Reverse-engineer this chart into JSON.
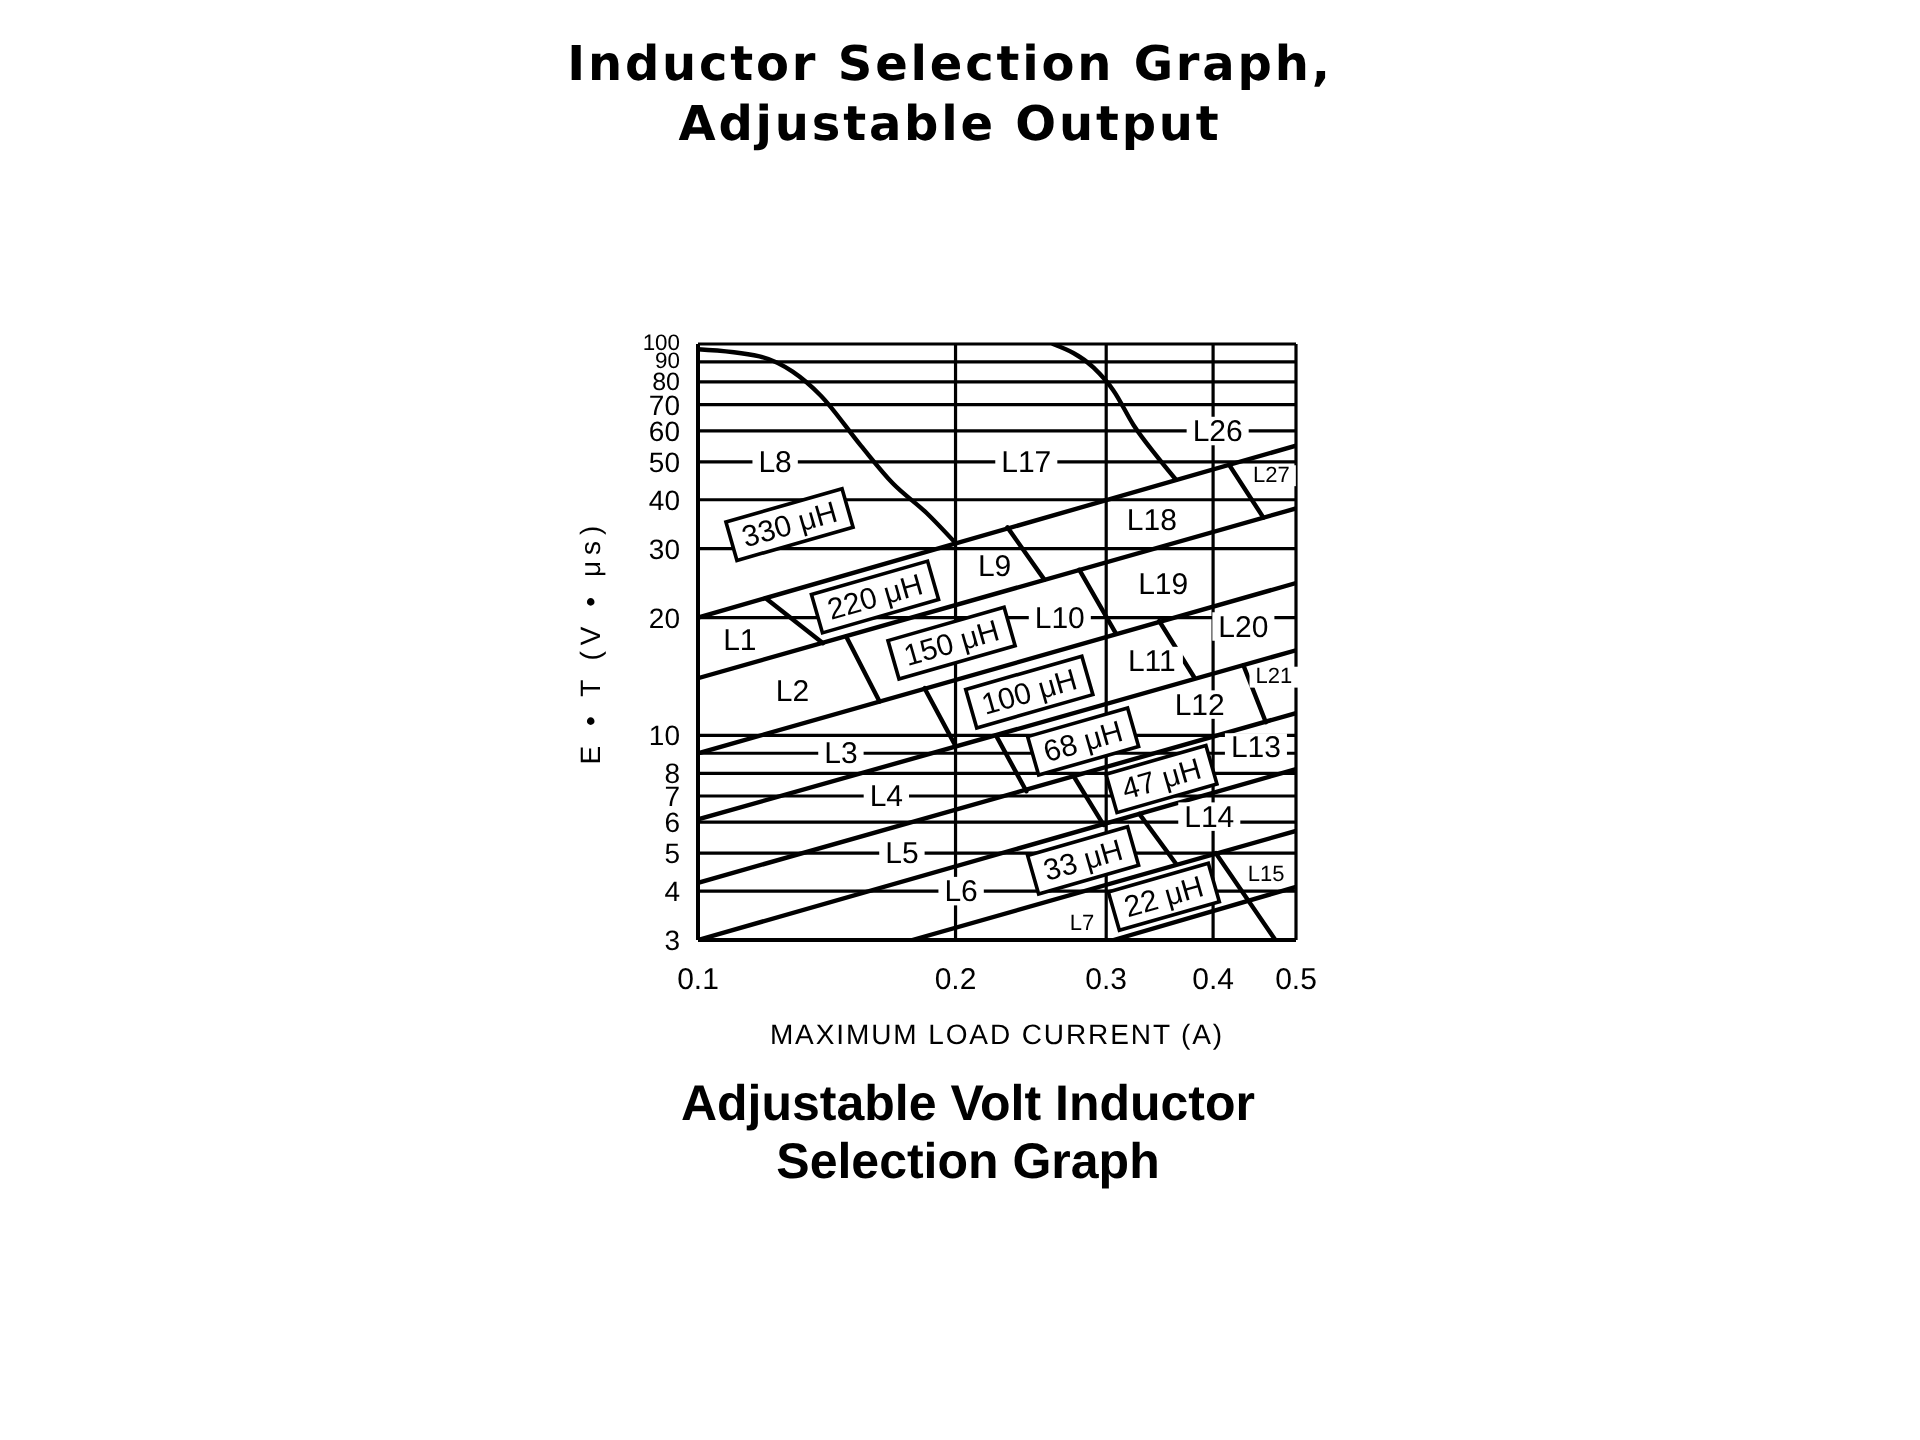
{
  "chart_data": {
    "type": "line",
    "title": "Inductor Selection Graph, Adjustable Output",
    "xlabel": "MAXIMUM LOAD CURRENT (A)",
    "ylabel": "E • T (V • μs)",
    "log": "xy",
    "grid": true,
    "marker": "none",
    "line_style": "solid",
    "xlim": [
      0.1,
      0.5
    ],
    "xticks": [
      0.1,
      0.2,
      0.3,
      0.4,
      0.5
    ],
    "ylim": [
      3,
      100
    ],
    "yticks": [
      3,
      4,
      5,
      6,
      7,
      8,
      {
        "value": 9,
        "label": null
      },
      10,
      20,
      30,
      40,
      50,
      60,
      70,
      80,
      90,
      100
    ],
    "series": [
      {
        "color": "#000000",
        "x": [
          0.1,
          0.5
        ],
        "values": [
          20,
          55
        ]
      },
      {
        "color": "#000000",
        "x": [
          0.1,
          0.5
        ],
        "values": [
          14,
          38
        ]
      },
      {
        "color": "#000000",
        "x": [
          0.1,
          0.5
        ],
        "values": [
          9,
          24.5
        ]
      },
      {
        "color": "#000000",
        "x": [
          0.1,
          0.5
        ],
        "values": [
          6.1,
          16.5
        ]
      },
      {
        "color": "#000000",
        "x": [
          0.1,
          0.5
        ],
        "values": [
          4.2,
          11.4
        ]
      },
      {
        "color": "#000000",
        "x": [
          0.1,
          0.5
        ],
        "values": [
          3,
          8.2
        ]
      },
      {
        "color": "#000000",
        "x": [
          0.178,
          0.5
        ],
        "values": [
          3,
          5.7
        ]
      },
      {
        "color": "#000000",
        "x": [
          0.306,
          0.5
        ],
        "values": [
          3,
          4.1
        ]
      },
      {
        "color": "#000000",
        "x": [
          0.1,
          0.118,
          0.129,
          0.139,
          0.155,
          0.169,
          0.185,
          0.2
        ],
        "values": [
          97,
          93,
          85,
          74,
          55,
          44,
          37,
          31
        ]
      },
      {
        "color": "#000000",
        "x": [
          0.26,
          0.29,
          0.306,
          0.323,
          0.343,
          0.362
        ],
        "values": [
          100,
          87,
          76,
          62,
          52,
          45
        ]
      },
      {
        "color": "#000000",
        "x": [
          0.12,
          0.14
        ],
        "values": [
          22.4,
          17.2
        ]
      },
      {
        "color": "#000000",
        "x": [
          0.23,
          0.254
        ],
        "values": [
          34,
          25
        ]
      },
      {
        "color": "#000000",
        "x": [
          0.418,
          0.458
        ],
        "values": [
          49,
          36
        ]
      },
      {
        "color": "#000000",
        "x": [
          0.149,
          0.163
        ],
        "values": [
          17.9,
          12.2
        ]
      },
      {
        "color": "#000000",
        "x": [
          0.279,
          0.308
        ],
        "values": [
          26.5,
          18.2
        ]
      },
      {
        "color": "#000000",
        "x": [
          0.184,
          0.2
        ],
        "values": [
          13.2,
          9.4
        ]
      },
      {
        "color": "#000000",
        "x": [
          0.346,
          0.38
        ],
        "values": [
          19.6,
          14.1
        ]
      },
      {
        "color": "#000000",
        "x": [
          0.223,
          0.242
        ],
        "values": [
          10,
          7.2
        ]
      },
      {
        "color": "#000000",
        "x": [
          0.434,
          0.461
        ],
        "values": [
          15.1,
          10.8
        ]
      },
      {
        "color": "#000000",
        "x": [
          0.275,
          0.298
        ],
        "values": [
          7.85,
          5.9
        ]
      },
      {
        "color": "#000000",
        "x": [
          0.328,
          0.362
        ],
        "values": [
          6.3,
          4.7
        ]
      },
      {
        "color": "#000000",
        "x": [
          0.403,
          0.473
        ],
        "values": [
          5,
          3
        ]
      }
    ],
    "annotations": [
      "330 μH",
      "220 μH",
      "150 μH",
      "100 μH",
      "68 μH",
      "47 μH",
      "33 μH",
      "22 μH",
      "L8",
      "L17",
      "L26",
      "L27",
      "L18",
      "L9",
      "L19",
      "L1",
      "L10",
      "L20",
      "L2",
      "L11",
      "L21",
      "L12",
      "L3",
      "L13",
      "L4",
      "L14",
      "L5",
      "L15",
      "L6",
      "L7",
      "Adjustable Volt Inductor Selection Graph"
    ]
  }
}
